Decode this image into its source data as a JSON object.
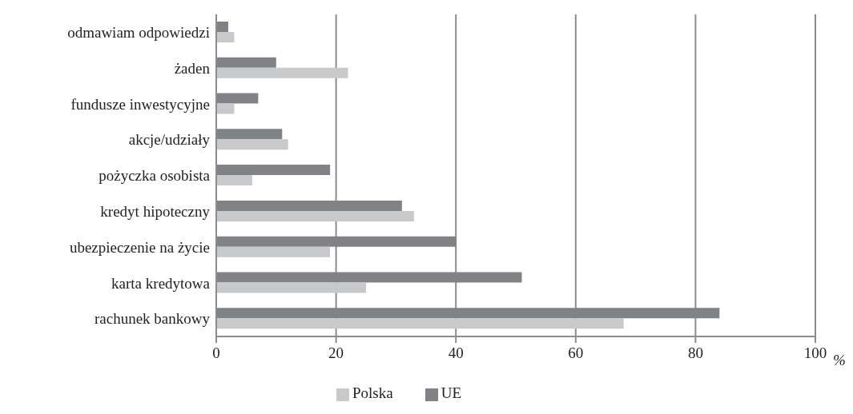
{
  "chart_data": {
    "type": "bar",
    "orientation": "horizontal",
    "xlabel": "%",
    "categories": [
      "odmawiam odpowiedzi",
      "żaden",
      "fundusze inwestycyjne",
      "akcje/udziały",
      "pożyczka osobista",
      "kredyt hipoteczny",
      "ubezpieczenie na życie",
      "karta kredytowa",
      "rachunek bankowy"
    ],
    "series": [
      {
        "name": "UE",
        "color": "#808285",
        "values": [
          2,
          10,
          7,
          11,
          19,
          31,
          40,
          51,
          84
        ]
      },
      {
        "name": "Polska",
        "color": "#c8c9cb",
        "values": [
          3,
          22,
          3,
          12,
          6,
          33,
          19,
          25,
          68
        ]
      }
    ],
    "xlim": [
      0,
      100
    ],
    "xticks": [
      0,
      20,
      40,
      60,
      80,
      100
    ],
    "grid": "x",
    "legend": "bottom"
  }
}
